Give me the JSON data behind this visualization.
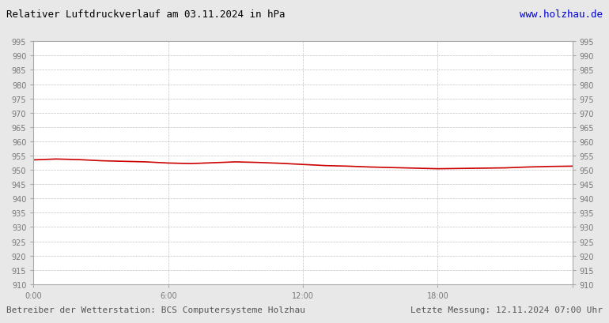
{
  "title": "Relativer Luftdruckverlauf am 03.11.2024 in hPa",
  "url_text": "www.holzhau.de",
  "bottom_left": "Betreiber der Wetterstation: BCS Computersysteme Holzhau",
  "bottom_right": "Letzte Messung: 12.11.2024 07:00 Uhr",
  "x_ticks_labels": [
    "0:00",
    "6:00",
    "12:00",
    "18:00",
    ""
  ],
  "x_ticks_positions": [
    0,
    360,
    720,
    1080,
    1440
  ],
  "ylim": [
    910,
    995
  ],
  "xlim": [
    0,
    1440
  ],
  "ytick_step": 5,
  "background_color": "#e8e8e8",
  "plot_bg_color": "#ffffff",
  "line_color": "#cc0000",
  "grid_color": "#aaaaaa",
  "title_color": "#000000",
  "url_color": "#0000cc",
  "bottom_text_color": "#555555",
  "tick_label_color": "#777777",
  "pressure_x": [
    0,
    60,
    120,
    180,
    240,
    300,
    360,
    420,
    480,
    540,
    600,
    660,
    720,
    780,
    840,
    900,
    960,
    1020,
    1080,
    1140,
    1200,
    1260,
    1320,
    1380,
    1440
  ],
  "pressure_y": [
    953.5,
    953.8,
    953.6,
    953.2,
    953.0,
    952.8,
    952.4,
    952.2,
    952.5,
    952.8,
    952.6,
    952.3,
    951.9,
    951.5,
    951.3,
    951.0,
    950.8,
    950.6,
    950.4,
    950.5,
    950.6,
    950.7,
    951.0,
    951.2,
    951.3
  ]
}
